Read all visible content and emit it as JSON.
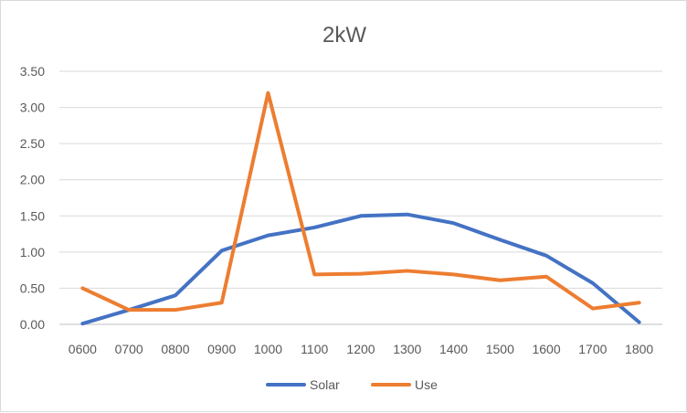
{
  "chart_data": {
    "type": "line",
    "title": "2kW",
    "xlabel": "",
    "ylabel": "",
    "categories": [
      "0600",
      "0700",
      "0800",
      "0900",
      "1000",
      "1100",
      "1200",
      "1300",
      "1400",
      "1500",
      "1600",
      "1700",
      "1800"
    ],
    "ylim": [
      0,
      3.5
    ],
    "yticks": [
      "0.00",
      "0.50",
      "1.00",
      "1.50",
      "2.00",
      "2.50",
      "3.00",
      "3.50"
    ],
    "grid": true,
    "legend_position": "bottom",
    "series": [
      {
        "name": "Solar",
        "color": "#4472c4",
        "values": [
          0.01,
          0.2,
          0.4,
          1.02,
          1.23,
          1.34,
          1.5,
          1.52,
          1.4,
          1.17,
          0.95,
          0.57,
          0.03
        ]
      },
      {
        "name": "Use",
        "color": "#ed7d31",
        "values": [
          0.5,
          0.2,
          0.2,
          0.3,
          3.2,
          0.69,
          0.7,
          0.74,
          0.69,
          0.61,
          0.66,
          0.22,
          0.3
        ]
      }
    ]
  }
}
